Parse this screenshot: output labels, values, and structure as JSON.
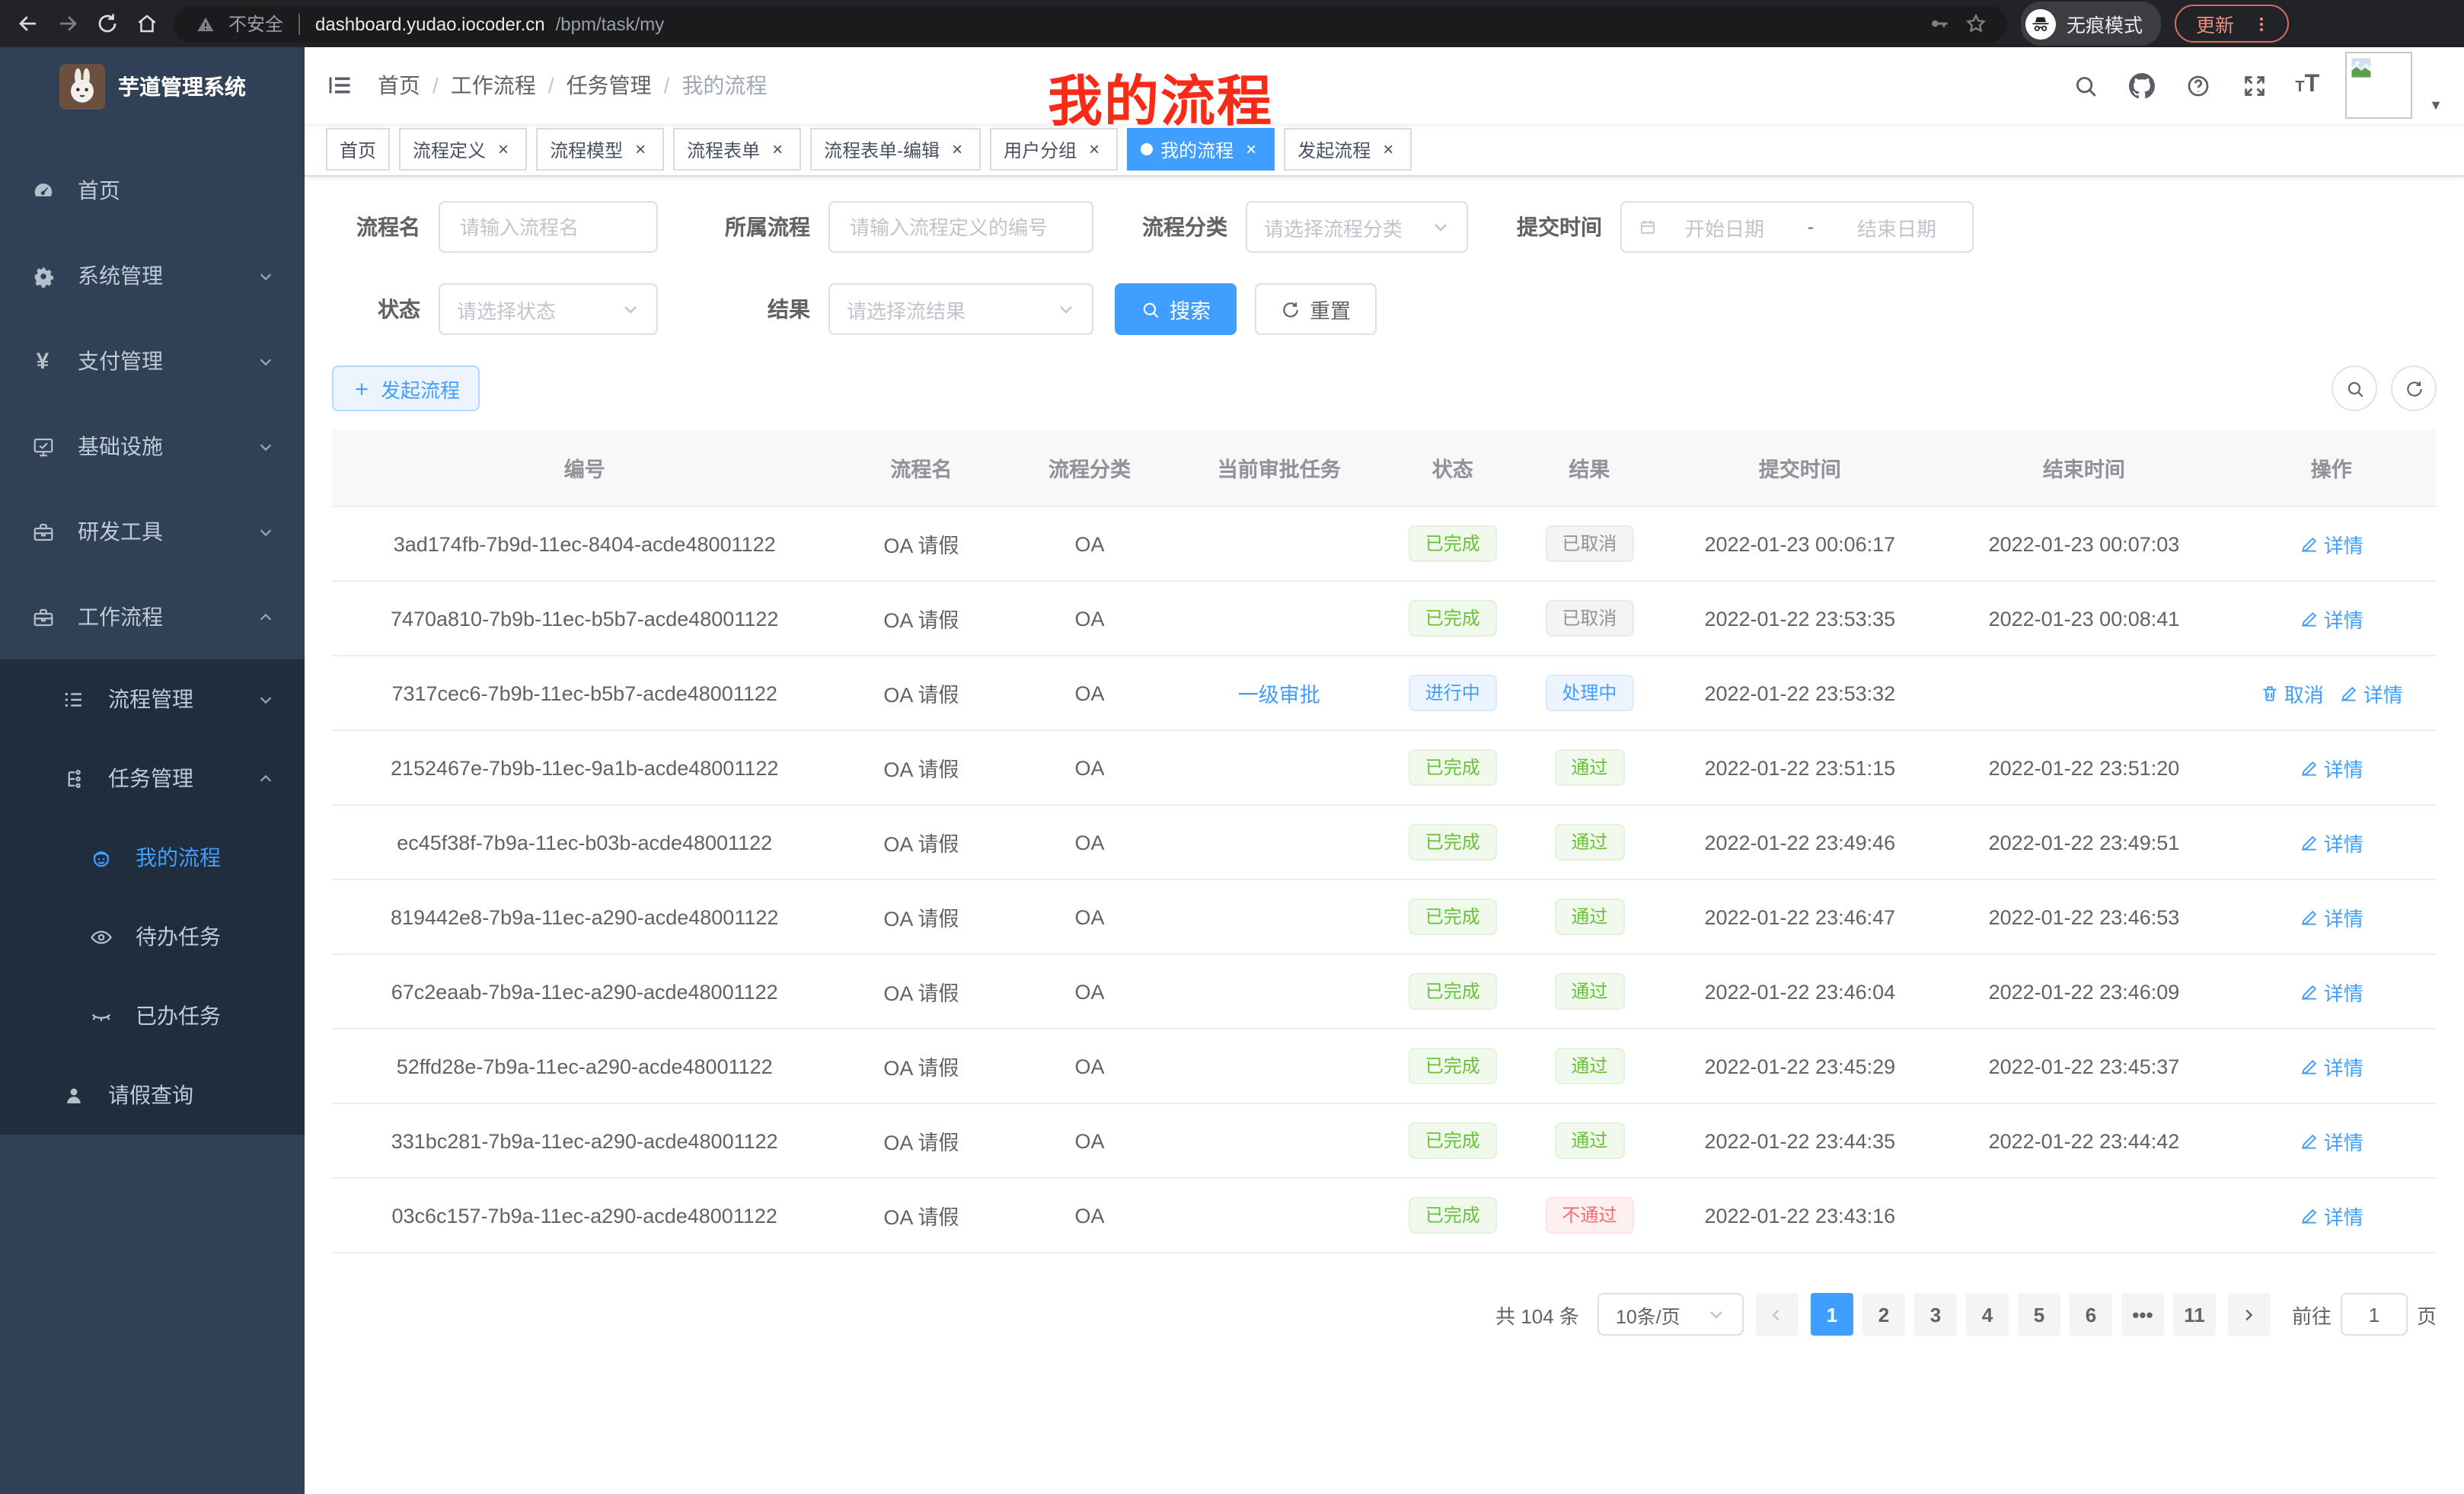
{
  "colors": {
    "accent": "#409eff",
    "success": "#67c23a",
    "danger": "#f56c6c",
    "info": "#909399",
    "annotation_red": "#f92a16",
    "sidebar_bg": "#304156",
    "submenu_bg": "#1f2d3d"
  },
  "browser": {
    "security_label": "不安全",
    "url_host": "dashboard.yudao.iocoder.cn",
    "url_path": "/bpm/task/my",
    "incognito_label": "无痕模式",
    "update_label": "更新"
  },
  "annotation": {
    "text": "我的流程"
  },
  "sidebar": {
    "title": "芋道管理系统",
    "items": [
      {
        "key": "home",
        "label": "首页",
        "icon": "dashboard-icon",
        "level": 1
      },
      {
        "key": "system",
        "label": "系统管理",
        "icon": "gear-icon",
        "level": 1,
        "chevron": "down"
      },
      {
        "key": "payment",
        "label": "支付管理",
        "icon": "yen-icon",
        "level": 1,
        "chevron": "down"
      },
      {
        "key": "infrastructure",
        "label": "基础设施",
        "icon": "monitor-icon",
        "level": 1,
        "chevron": "down"
      },
      {
        "key": "dev-tools",
        "label": "研发工具",
        "icon": "toolbox-icon",
        "level": 1,
        "chevron": "down"
      },
      {
        "key": "workflow",
        "label": "工作流程",
        "icon": "briefcase-icon",
        "level": 1,
        "chevron": "up"
      },
      {
        "key": "process-mgmt",
        "label": "流程管理",
        "icon": "list-icon",
        "level": 2,
        "chevron": "down"
      },
      {
        "key": "task-mgmt",
        "label": "任务管理",
        "icon": "tree-icon",
        "level": 2,
        "chevron": "up"
      },
      {
        "key": "my-process",
        "label": "我的流程",
        "icon": "robot-icon",
        "level": 3,
        "active": true
      },
      {
        "key": "todo-tasks",
        "label": "待办任务",
        "icon": "eye-icon",
        "level": 3
      },
      {
        "key": "done-tasks",
        "label": "已办任务",
        "icon": "eye-closed-icon",
        "level": 3
      },
      {
        "key": "leave-query",
        "label": "请假查询",
        "icon": "user-icon",
        "level": 2
      }
    ]
  },
  "breadcrumb": {
    "items": [
      "首页",
      "工作流程",
      "任务管理",
      "我的流程"
    ],
    "separator": "/"
  },
  "tabs": {
    "items": [
      {
        "key": "home",
        "label": "首页",
        "closable": false
      },
      {
        "key": "process-definition",
        "label": "流程定义",
        "closable": true
      },
      {
        "key": "process-model",
        "label": "流程模型",
        "closable": true
      },
      {
        "key": "process-form",
        "label": "流程表单",
        "closable": true
      },
      {
        "key": "process-form-edit",
        "label": "流程表单-编辑",
        "closable": true
      },
      {
        "key": "user-group",
        "label": "用户分组",
        "closable": true
      },
      {
        "key": "my-process",
        "label": "我的流程",
        "closable": true,
        "active": true
      },
      {
        "key": "start-process",
        "label": "发起流程",
        "closable": true
      }
    ]
  },
  "filters": {
    "name_label": "流程名",
    "name_placeholder": "请输入流程名",
    "definition_label": "所属流程",
    "definition_placeholder": "请输入流程定义的编号",
    "category_label": "流程分类",
    "category_placeholder": "请选择流程分类",
    "submit_time_label": "提交时间",
    "start_placeholder": "开始日期",
    "range_separator": "-",
    "end_placeholder": "结束日期",
    "status_label": "状态",
    "status_placeholder": "请选择状态",
    "result_label": "结果",
    "result_placeholder": "请选择流结果",
    "search_button": "搜索",
    "reset_button": "重置"
  },
  "toolbar": {
    "create_button": "发起流程"
  },
  "table": {
    "columns": [
      "编号",
      "流程名",
      "流程分类",
      "当前审批任务",
      "状态",
      "结果",
      "提交时间",
      "结束时间",
      "操作"
    ],
    "rows": [
      {
        "id": "3ad174fb-7b9d-11ec-8404-acde48001122",
        "name": "OA 请假",
        "category": "OA",
        "task": "",
        "status": "已完成",
        "status_type": "success",
        "result": "已取消",
        "result_type": "info",
        "submit_time": "2022-01-23 00:06:17",
        "end_time": "2022-01-23 00:07:03",
        "actions": [
          {
            "key": "detail",
            "label": "详情",
            "icon": "edit-icon"
          }
        ]
      },
      {
        "id": "7470a810-7b9b-11ec-b5b7-acde48001122",
        "name": "OA 请假",
        "category": "OA",
        "task": "",
        "status": "已完成",
        "status_type": "success",
        "result": "已取消",
        "result_type": "info",
        "submit_time": "2022-01-22 23:53:35",
        "end_time": "2022-01-23 00:08:41",
        "actions": [
          {
            "key": "detail",
            "label": "详情",
            "icon": "edit-icon"
          }
        ]
      },
      {
        "id": "7317cec6-7b9b-11ec-b5b7-acde48001122",
        "name": "OA 请假",
        "category": "OA",
        "task": "一级审批",
        "status": "进行中",
        "status_type": "primary",
        "result": "处理中",
        "result_type": "primary",
        "submit_time": "2022-01-22 23:53:32",
        "end_time": "",
        "actions": [
          {
            "key": "cancel",
            "label": "取消",
            "icon": "delete-icon"
          },
          {
            "key": "detail",
            "label": "详情",
            "icon": "edit-icon"
          }
        ]
      },
      {
        "id": "2152467e-7b9b-11ec-9a1b-acde48001122",
        "name": "OA 请假",
        "category": "OA",
        "task": "",
        "status": "已完成",
        "status_type": "success",
        "result": "通过",
        "result_type": "success",
        "submit_time": "2022-01-22 23:51:15",
        "end_time": "2022-01-22 23:51:20",
        "actions": [
          {
            "key": "detail",
            "label": "详情",
            "icon": "edit-icon"
          }
        ]
      },
      {
        "id": "ec45f38f-7b9a-11ec-b03b-acde48001122",
        "name": "OA 请假",
        "category": "OA",
        "task": "",
        "status": "已完成",
        "status_type": "success",
        "result": "通过",
        "result_type": "success",
        "submit_time": "2022-01-22 23:49:46",
        "end_time": "2022-01-22 23:49:51",
        "actions": [
          {
            "key": "detail",
            "label": "详情",
            "icon": "edit-icon"
          }
        ]
      },
      {
        "id": "819442e8-7b9a-11ec-a290-acde48001122",
        "name": "OA 请假",
        "category": "OA",
        "task": "",
        "status": "已完成",
        "status_type": "success",
        "result": "通过",
        "result_type": "success",
        "submit_time": "2022-01-22 23:46:47",
        "end_time": "2022-01-22 23:46:53",
        "actions": [
          {
            "key": "detail",
            "label": "详情",
            "icon": "edit-icon"
          }
        ]
      },
      {
        "id": "67c2eaab-7b9a-11ec-a290-acde48001122",
        "name": "OA 请假",
        "category": "OA",
        "task": "",
        "status": "已完成",
        "status_type": "success",
        "result": "通过",
        "result_type": "success",
        "submit_time": "2022-01-22 23:46:04",
        "end_time": "2022-01-22 23:46:09",
        "actions": [
          {
            "key": "detail",
            "label": "详情",
            "icon": "edit-icon"
          }
        ]
      },
      {
        "id": "52ffd28e-7b9a-11ec-a290-acde48001122",
        "name": "OA 请假",
        "category": "OA",
        "task": "",
        "status": "已完成",
        "status_type": "success",
        "result": "通过",
        "result_type": "success",
        "submit_time": "2022-01-22 23:45:29",
        "end_time": "2022-01-22 23:45:37",
        "actions": [
          {
            "key": "detail",
            "label": "详情",
            "icon": "edit-icon"
          }
        ]
      },
      {
        "id": "331bc281-7b9a-11ec-a290-acde48001122",
        "name": "OA 请假",
        "category": "OA",
        "task": "",
        "status": "已完成",
        "status_type": "success",
        "result": "通过",
        "result_type": "success",
        "submit_time": "2022-01-22 23:44:35",
        "end_time": "2022-01-22 23:44:42",
        "actions": [
          {
            "key": "detail",
            "label": "详情",
            "icon": "edit-icon"
          }
        ]
      },
      {
        "id": "03c6c157-7b9a-11ec-a290-acde48001122",
        "name": "OA 请假",
        "category": "OA",
        "task": "",
        "status": "已完成",
        "status_type": "success",
        "result": "不通过",
        "result_type": "danger",
        "submit_time": "2022-01-22 23:43:16",
        "end_time": "",
        "actions": [
          {
            "key": "detail",
            "label": "详情",
            "icon": "edit-icon"
          }
        ]
      }
    ]
  },
  "pagination": {
    "total_text": "共 104 条",
    "page_size": "10条/页",
    "pages": [
      {
        "label": "1",
        "active": true
      },
      {
        "label": "2"
      },
      {
        "label": "3"
      },
      {
        "label": "4"
      },
      {
        "label": "5"
      },
      {
        "label": "6"
      },
      {
        "label": "•••",
        "ellipsis": true
      },
      {
        "label": "11"
      }
    ],
    "goto_label": "前往",
    "goto_value": "1",
    "goto_suffix": "页"
  }
}
